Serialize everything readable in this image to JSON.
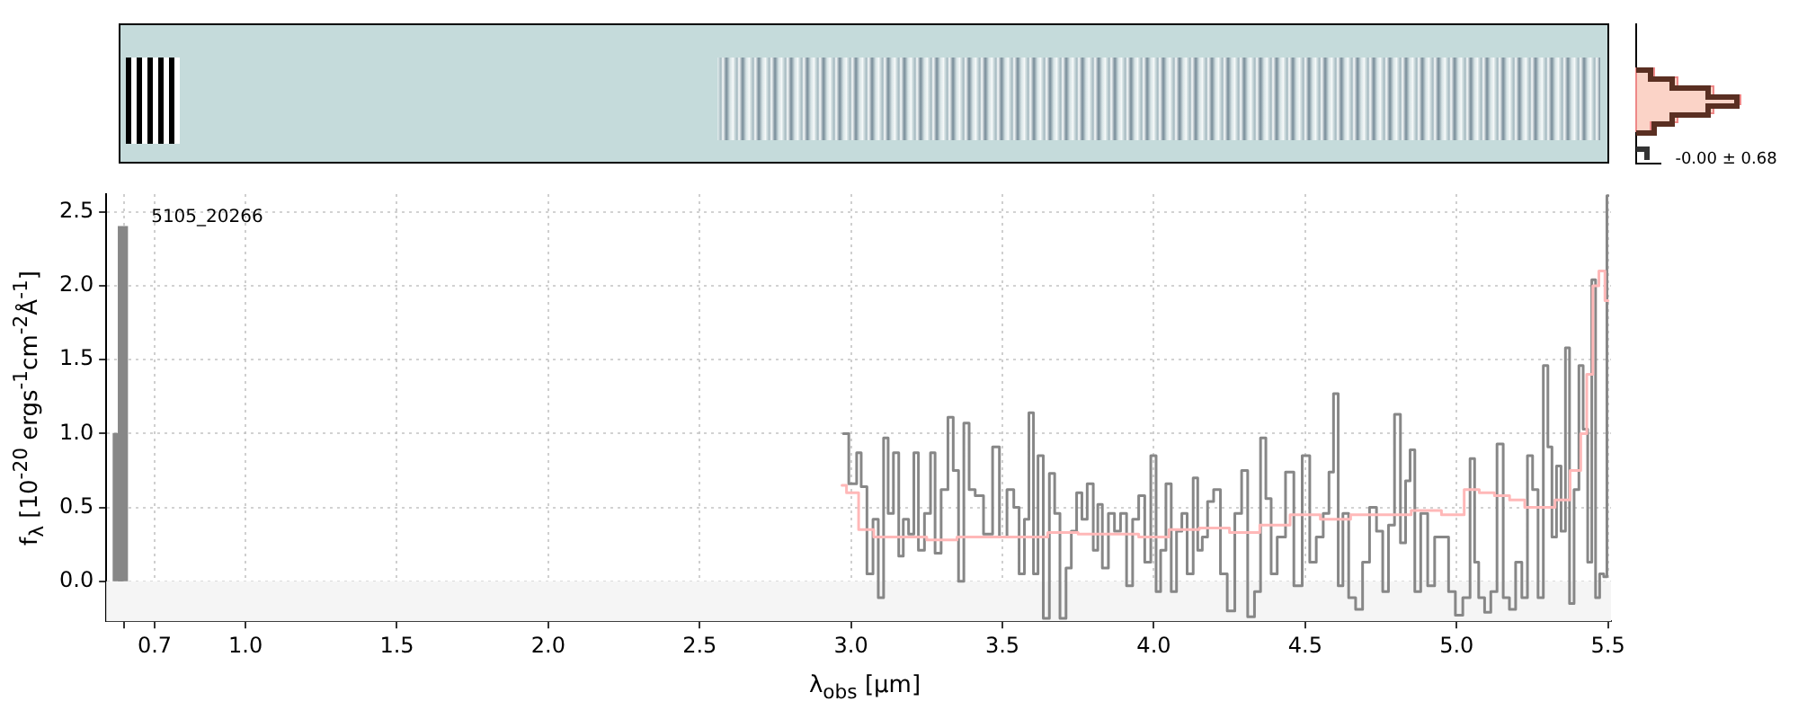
{
  "chart_data": {
    "type": "step",
    "xlabel": "λ$_{obs}$ [μm]",
    "ylabel": "f$_{λ}$ [10$^{-20}$ ergs$^{-1}$cm$^{-2}$Å$^{-1}$]",
    "annotations": [
      "5105_20266",
      "-0.00 ± 0.68"
    ],
    "xlim": [
      0.54,
      5.51
    ],
    "xticks": [
      {
        "value": 0.6,
        "label": null
      },
      0.7,
      {
        "value": 1,
        "label": "1.0"
      },
      1.5,
      {
        "value": 2,
        "label": "2.0"
      },
      2.5,
      {
        "value": 3,
        "label": "3.0"
      },
      3.5,
      {
        "value": 4,
        "label": "4.0"
      },
      4.5,
      {
        "value": 5,
        "label": "5.0"
      },
      5.5
    ],
    "ylim": [
      -0.27,
      2.62
    ],
    "yticks": [
      {
        "value": 0,
        "label": "0.0"
      },
      0.5,
      {
        "value": 1,
        "label": "1.0"
      },
      1.5,
      {
        "value": 2,
        "label": "2.0"
      },
      2.5
    ],
    "grid": true,
    "legend": false,
    "bands": [
      {
        "axis": "y",
        "from": -0.27,
        "to": 0,
        "color": "#f5f5f5"
      }
    ],
    "series": [
      {
        "color": "#ffb8b8",
        "x": [
          2.97,
          3.0,
          3.05,
          3.1,
          3.2,
          3.3,
          3.4,
          3.5,
          3.6,
          3.7,
          3.8,
          3.9,
          4.0,
          4.1,
          4.2,
          4.3,
          4.4,
          4.5,
          4.6,
          4.7,
          4.8,
          4.9,
          5.0,
          5.05,
          5.1,
          5.15,
          5.2,
          5.25,
          5.3,
          5.35,
          5.4,
          5.42,
          5.44,
          5.46,
          5.48,
          5.5
        ],
        "values": [
          0.65,
          0.6,
          0.35,
          0.3,
          0.3,
          0.28,
          0.3,
          0.3,
          0.3,
          0.33,
          0.32,
          0.32,
          0.3,
          0.35,
          0.36,
          0.33,
          0.38,
          0.45,
          0.42,
          0.45,
          0.45,
          0.48,
          0.45,
          0.62,
          0.6,
          0.58,
          0.55,
          0.5,
          0.5,
          0.55,
          0.75,
          1.0,
          1.4,
          2.0,
          2.1,
          1.9
        ]
      },
      {
        "type": "bar",
        "color": "#878787",
        "x": [
          0.578,
          0.595
        ],
        "values": [
          1.0,
          2.4
        ]
      },
      {
        "color": "#878787",
        "x": [
          2.975,
          3.01,
          3.027,
          3.04,
          3.065,
          3.08,
          3.1,
          3.115,
          3.13,
          3.15,
          3.165,
          3.18,
          3.2,
          3.215,
          3.23,
          3.255,
          3.27,
          3.285,
          3.31,
          3.33,
          3.345,
          3.365,
          3.38,
          3.4,
          3.42,
          3.455,
          3.48,
          3.5,
          3.53,
          3.545,
          3.565,
          3.58,
          3.595,
          3.61,
          3.625,
          3.645,
          3.665,
          3.68,
          3.7,
          3.72,
          3.735,
          3.755,
          3.77,
          3.79,
          3.81,
          3.82,
          3.84,
          3.86,
          3.88,
          3.9,
          3.92,
          3.94,
          3.96,
          3.98,
          4.0,
          4.015,
          4.03,
          4.05,
          4.065,
          4.085,
          4.1,
          4.12,
          4.14,
          4.15,
          4.17,
          4.185,
          4.21,
          4.23,
          4.255,
          4.28,
          4.3,
          4.32,
          4.345,
          4.36,
          4.38,
          4.395,
          4.42,
          4.45,
          4.475,
          4.505,
          4.525,
          4.548,
          4.571,
          4.586,
          4.601,
          4.617,
          4.632,
          4.655,
          4.678,
          4.701,
          4.724,
          4.747,
          4.765,
          4.785,
          4.805,
          4.824,
          4.839,
          4.854,
          4.87,
          4.893,
          4.916,
          4.939,
          4.962,
          4.985,
          5.007,
          5.034,
          5.055,
          5.064,
          5.082,
          5.103,
          5.123,
          5.144,
          5.164,
          5.185,
          5.205,
          5.226,
          5.242,
          5.26,
          5.278,
          5.295,
          5.308,
          5.322,
          5.338,
          5.352,
          5.367,
          5.379,
          5.397,
          5.411,
          5.425,
          5.441,
          5.452,
          5.466,
          5.479,
          5.493,
          5.5
        ],
        "values": [
          1.0,
          0.66,
          0.87,
          0.64,
          0.05,
          0.42,
          -0.11,
          0.97,
          0.46,
          0.87,
          0.17,
          0.42,
          0.32,
          0.87,
          0.21,
          0.46,
          0.87,
          0.19,
          0.62,
          1.11,
          0.75,
          0.0,
          1.07,
          0.62,
          0.58,
          0.32,
          0.91,
          0.3,
          0.62,
          0.5,
          0.05,
          0.42,
          1.14,
          0.05,
          0.85,
          -0.25,
          0.73,
          0.46,
          -0.25,
          0.09,
          0.34,
          0.6,
          0.42,
          0.66,
          0.21,
          0.52,
          0.09,
          0.46,
          0.34,
          0.46,
          -0.03,
          0.42,
          0.58,
          0.13,
          0.85,
          -0.07,
          0.21,
          0.66,
          -0.07,
          0.34,
          0.46,
          0.05,
          0.7,
          0.21,
          0.3,
          0.54,
          0.62,
          0.05,
          -0.2,
          0.46,
          0.75,
          -0.24,
          -0.07,
          0.97,
          0.56,
          0.05,
          0.3,
          0.74,
          -0.03,
          0.85,
          0.13,
          0.3,
          0.46,
          0.74,
          1.27,
          -0.03,
          0.46,
          -0.11,
          -0.19,
          0.13,
          0.5,
          0.34,
          -0.07,
          0.38,
          1.13,
          0.26,
          0.68,
          0.89,
          -0.07,
          0.46,
          -0.03,
          0.3,
          0.3,
          -0.07,
          -0.23,
          -0.11,
          0.83,
          0.13,
          -0.11,
          -0.21,
          -0.07,
          0.93,
          -0.11,
          -0.19,
          0.13,
          -0.11,
          0.85,
          0.62,
          -0.11,
          1.46,
          0.91,
          0.3,
          0.78,
          0.34,
          1.58,
          -0.15,
          0.62,
          1.46,
          1.03,
          0.13,
          2.04,
          -0.11,
          0.05,
          0.03,
          2.61
        ]
      }
    ]
  }
}
